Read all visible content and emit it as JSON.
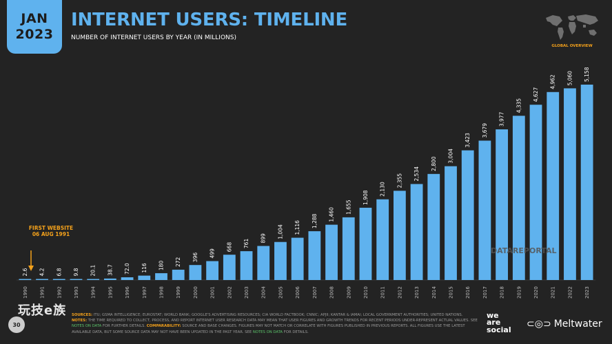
{
  "header": {
    "badge_month": "JAN",
    "badge_year": "2023",
    "title": "INTERNET USERS: TIMELINE",
    "subtitle": "NUMBER OF INTERNET USERS BY YEAR (IN MILLIONS)",
    "map_label": "GLOBAL OVERVIEW"
  },
  "annotation": {
    "line1": "FIRST WEBSITE",
    "line2": "06 AUG 1991"
  },
  "watermark": "DATAREPORTAL",
  "footer": {
    "sources_label": "SOURCES:",
    "sources_text": "ITU; GSMA INTELLIGENCE; EUROSTAT; WORLD BANK; GOOGLE'S ADVERTISING RESOURCES; CIA WORLD FACTBOOK; CNNIC; APJII; KANTAR & IAMAI; LOCAL GOVERNMENT AUTHORITIES; UNITED NATIONS.",
    "notes_label": "NOTES:",
    "notes_text": "THE TIME REQUIRED TO COLLECT, PROCESS, AND REPORT INTERNET USER RESEARCH DATA MAY MEAN THAT USER FIGURES AND GROWTH TRENDS FOR RECENT PERIODS UNDER-REPRESENT ACTUAL VALUES. SEE",
    "notes_link": "NOTES ON DATA",
    "notes_tail": "FOR FURTHER DETAILS.",
    "comp_label": "COMPARABILITY:",
    "comp_text": "SOURCE AND BASE CHANGES. FIGURES MAY NOT MATCH OR CORRELATE WITH FIGURES PUBLISHED IN PREVIOUS REPORTS. ALL FIGURES USE THE LATEST AVAILABLE DATA, BUT SOME SOURCE DATA MAY NOT HAVE BEEN UPDATED IN THE PAST YEAR. SEE",
    "comp_link": "NOTES ON DATA",
    "comp_tail": "FOR DETAILS.",
    "page_number": "30",
    "cn_logo": "玩技e族",
    "was_line1": "we",
    "was_line2": "are",
    "was_line3": "social",
    "mw_icon": "⊂◎⊃",
    "mw_text": "Meltwater"
  },
  "colors": {
    "bar": "#5fb2ee",
    "accent": "#f5a21b",
    "background": "#232323"
  },
  "chart_data": {
    "type": "bar",
    "categories": [
      "1990",
      "1991",
      "1992",
      "1993",
      "1994",
      "1995",
      "1996",
      "1997",
      "1998",
      "1999",
      "2000",
      "2001",
      "2002",
      "2003",
      "2004",
      "2005",
      "2006",
      "2007",
      "2008",
      "2009",
      "2010",
      "2011",
      "2012",
      "2013",
      "2014",
      "2015",
      "2016",
      "2017",
      "2018",
      "2019",
      "2020",
      "2021",
      "2022",
      "2023"
    ],
    "values": [
      2.6,
      4.2,
      6.8,
      9.8,
      20.1,
      38.7,
      72.0,
      116,
      180,
      272,
      396,
      499,
      668,
      761,
      899,
      1004,
      1116,
      1288,
      1460,
      1655,
      1908,
      2130,
      2355,
      2534,
      2800,
      3004,
      3423,
      3679,
      3977,
      4335,
      4627,
      4962,
      5060,
      5158
    ],
    "labels": [
      "2.6",
      "4.2",
      "6.8",
      "9.8",
      "20.1",
      "38.7",
      "72.0",
      "116",
      "180",
      "272",
      "396",
      "499",
      "668",
      "761",
      "899",
      "1,004",
      "1,116",
      "1,288",
      "1,460",
      "1,655",
      "1,908",
      "2,130",
      "2,355",
      "2,534",
      "2,800",
      "3,004",
      "3,423",
      "3,679",
      "3,977",
      "4,335",
      "4,627",
      "4,962",
      "5,060",
      "5,158"
    ],
    "title": "INTERNET USERS: TIMELINE",
    "subtitle": "NUMBER OF INTERNET USERS BY YEAR (IN MILLIONS)",
    "xlabel": "",
    "ylabel": "",
    "ylim": [
      0,
      5158
    ],
    "grid": false,
    "annotation": {
      "category": "1991",
      "text": "FIRST WEBSITE 06 AUG 1991"
    }
  }
}
